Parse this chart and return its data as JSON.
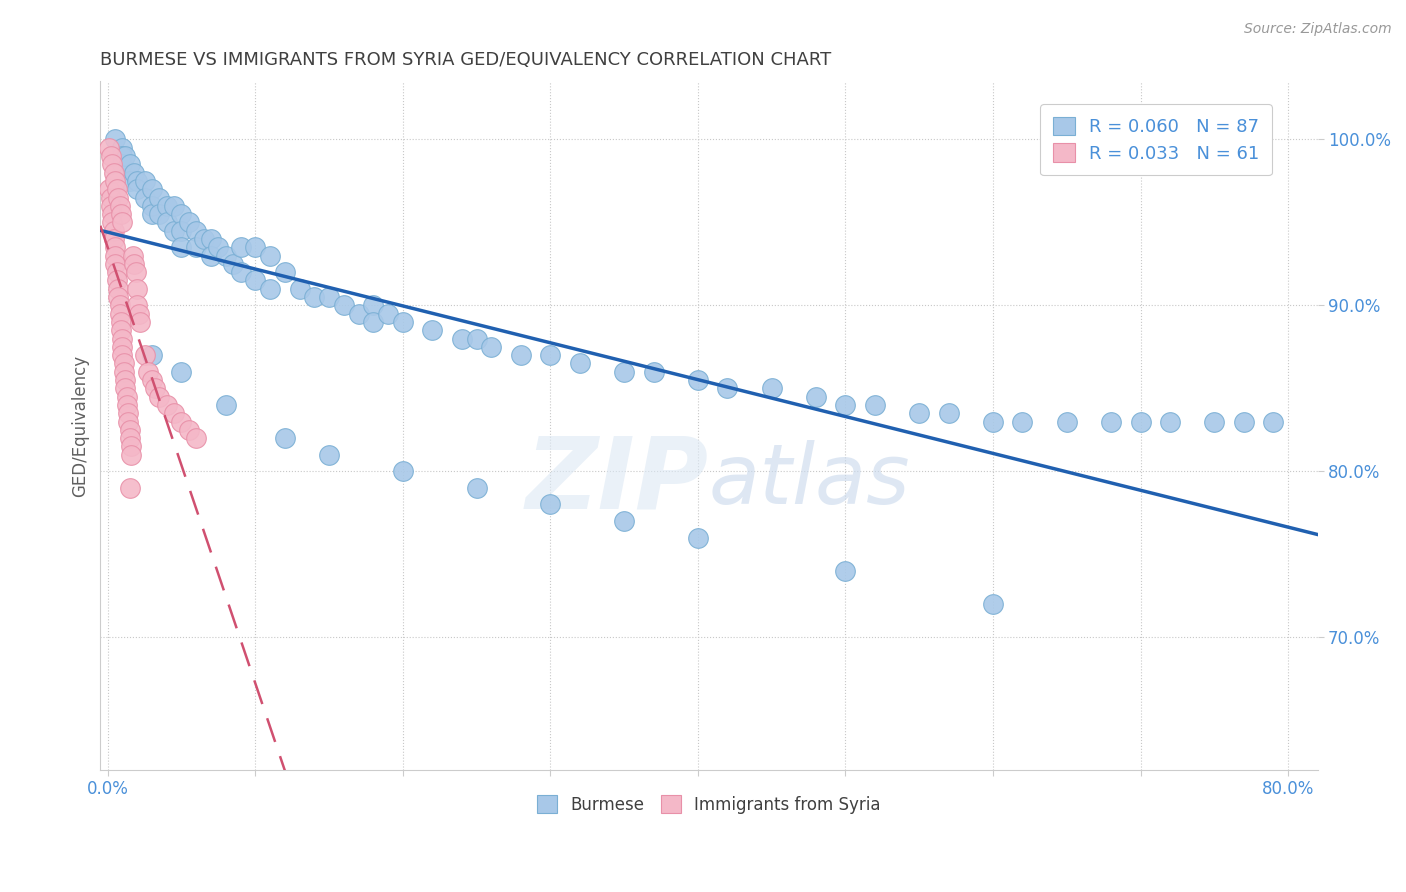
{
  "title": "BURMESE VS IMMIGRANTS FROM SYRIA GED/EQUIVALENCY CORRELATION CHART",
  "source": "Source: ZipAtlas.com",
  "ylabel": "GED/Equivalency",
  "xlim": [
    -0.005,
    0.82
  ],
  "ylim": [
    0.62,
    1.035
  ],
  "yticks": [
    0.7,
    0.8,
    0.9,
    1.0
  ],
  "xtick_positions": [
    0.0,
    0.1,
    0.2,
    0.3,
    0.4,
    0.5,
    0.6,
    0.7,
    0.8
  ],
  "legend1_r": "0.060",
  "legend1_n": "87",
  "legend2_r": "0.033",
  "legend2_n": "61",
  "blue_color": "#a8c8e8",
  "blue_edge_color": "#7aafd4",
  "pink_color": "#f4b8c8",
  "pink_edge_color": "#e890a8",
  "blue_line_color": "#2060b0",
  "pink_line_color": "#d05070",
  "watermark_color": "#d0dff0",
  "title_color": "#404040",
  "axis_color": "#4a90d9",
  "ylabel_color": "#606060",
  "blue_x": [
    0.005,
    0.01,
    0.01,
    0.01,
    0.012,
    0.015,
    0.015,
    0.018,
    0.02,
    0.02,
    0.025,
    0.025,
    0.03,
    0.03,
    0.03,
    0.035,
    0.035,
    0.04,
    0.04,
    0.045,
    0.045,
    0.05,
    0.05,
    0.05,
    0.055,
    0.06,
    0.06,
    0.065,
    0.07,
    0.07,
    0.075,
    0.08,
    0.085,
    0.09,
    0.09,
    0.1,
    0.1,
    0.11,
    0.11,
    0.12,
    0.13,
    0.14,
    0.15,
    0.16,
    0.17,
    0.18,
    0.18,
    0.19,
    0.2,
    0.22,
    0.24,
    0.25,
    0.26,
    0.28,
    0.3,
    0.32,
    0.35,
    0.37,
    0.4,
    0.42,
    0.45,
    0.48,
    0.5,
    0.52,
    0.55,
    0.57,
    0.6,
    0.62,
    0.65,
    0.68,
    0.7,
    0.72,
    0.75,
    0.77,
    0.79,
    0.03,
    0.05,
    0.08,
    0.12,
    0.15,
    0.2,
    0.25,
    0.3,
    0.35,
    0.4,
    0.5,
    0.6
  ],
  "blue_y": [
    1.0,
    0.995,
    0.99,
    0.985,
    0.99,
    0.985,
    0.975,
    0.98,
    0.975,
    0.97,
    0.975,
    0.965,
    0.97,
    0.96,
    0.955,
    0.965,
    0.955,
    0.96,
    0.95,
    0.96,
    0.945,
    0.955,
    0.945,
    0.935,
    0.95,
    0.945,
    0.935,
    0.94,
    0.94,
    0.93,
    0.935,
    0.93,
    0.925,
    0.935,
    0.92,
    0.935,
    0.915,
    0.93,
    0.91,
    0.92,
    0.91,
    0.905,
    0.905,
    0.9,
    0.895,
    0.9,
    0.89,
    0.895,
    0.89,
    0.885,
    0.88,
    0.88,
    0.875,
    0.87,
    0.87,
    0.865,
    0.86,
    0.86,
    0.855,
    0.85,
    0.85,
    0.845,
    0.84,
    0.84,
    0.835,
    0.835,
    0.83,
    0.83,
    0.83,
    0.83,
    0.83,
    0.83,
    0.83,
    0.83,
    0.83,
    0.87,
    0.86,
    0.84,
    0.82,
    0.81,
    0.8,
    0.79,
    0.78,
    0.77,
    0.76,
    0.74,
    0.72
  ],
  "pink_x": [
    0.001,
    0.002,
    0.002,
    0.003,
    0.003,
    0.004,
    0.004,
    0.005,
    0.005,
    0.005,
    0.006,
    0.006,
    0.007,
    0.007,
    0.008,
    0.008,
    0.009,
    0.009,
    0.01,
    0.01,
    0.01,
    0.011,
    0.011,
    0.012,
    0.012,
    0.013,
    0.013,
    0.014,
    0.014,
    0.015,
    0.015,
    0.016,
    0.016,
    0.017,
    0.018,
    0.019,
    0.02,
    0.02,
    0.021,
    0.022,
    0.025,
    0.027,
    0.03,
    0.032,
    0.035,
    0.04,
    0.045,
    0.05,
    0.055,
    0.06,
    0.001,
    0.002,
    0.003,
    0.004,
    0.005,
    0.006,
    0.007,
    0.008,
    0.009,
    0.01,
    0.015
  ],
  "pink_y": [
    0.97,
    0.965,
    0.96,
    0.955,
    0.95,
    0.945,
    0.94,
    0.935,
    0.93,
    0.925,
    0.92,
    0.915,
    0.91,
    0.905,
    0.9,
    0.895,
    0.89,
    0.885,
    0.88,
    0.875,
    0.87,
    0.865,
    0.86,
    0.855,
    0.85,
    0.845,
    0.84,
    0.835,
    0.83,
    0.825,
    0.82,
    0.815,
    0.81,
    0.93,
    0.925,
    0.92,
    0.91,
    0.9,
    0.895,
    0.89,
    0.87,
    0.86,
    0.855,
    0.85,
    0.845,
    0.84,
    0.835,
    0.83,
    0.825,
    0.82,
    0.995,
    0.99,
    0.985,
    0.98,
    0.975,
    0.97,
    0.965,
    0.96,
    0.955,
    0.95,
    0.79
  ]
}
